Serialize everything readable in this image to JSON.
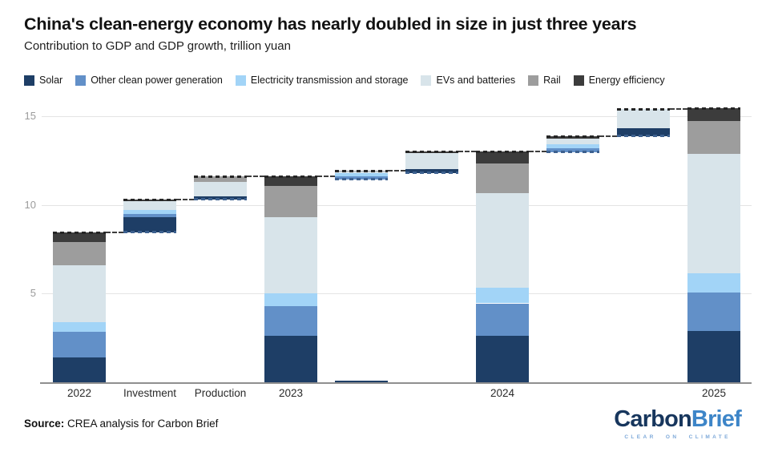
{
  "header": {
    "title": "China's clean-energy economy has nearly doubled in size in just three years",
    "subtitle": "Contribution to GDP and GDP growth, trillion yuan"
  },
  "legend": {
    "items": [
      {
        "label": "Solar"
      },
      {
        "label": "Other clean power generation"
      },
      {
        "label": "Electricity transmission and storage"
      },
      {
        "label": "EVs and batteries"
      },
      {
        "label": "Rail"
      },
      {
        "label": "Energy efficiency"
      }
    ]
  },
  "chart_data": {
    "type": "bar",
    "subtype": "stacked-waterfall",
    "title": "China's clean-energy economy has nearly doubled in size in just three years",
    "subtitle": "Contribution to GDP and GDP growth, trillion yuan",
    "unit": "trillion yuan",
    "ylim": [
      0,
      15.9
    ],
    "yticks": [
      15,
      10,
      5
    ],
    "grid": true,
    "legend_position": "top",
    "series": [
      "Solar",
      "Other clean power generation",
      "Electricity transmission and storage",
      "EVs and batteries",
      "Rail",
      "Energy efficiency"
    ],
    "colors": [
      "#1e3e66",
      "#6290c8",
      "#a2d4f7",
      "#d8e4ea",
      "#9d9d9d",
      "#3c3c3c"
    ],
    "bars": [
      {
        "label": "2022",
        "base": 0,
        "segments": [
          1.4,
          1.45,
          0.55,
          3.2,
          1.3,
          0.55
        ],
        "total": 8.45
      },
      {
        "label": "Investment",
        "base": 8.45,
        "segments": [
          0.85,
          0.2,
          0.2,
          0.5,
          0,
          0.1
        ],
        "total": 10.3
      },
      {
        "label": "Production",
        "base": 10.3,
        "segments": [
          0.2,
          0,
          0,
          0.8,
          0.3,
          0
        ],
        "total": 11.6
      },
      {
        "label": "2023",
        "base": 0,
        "segments": [
          2.6,
          1.7,
          0.7,
          4.3,
          1.75,
          0.55
        ],
        "total": 11.6
      },
      {
        "label": "",
        "base": 11.45,
        "segments": [
          0,
          0.15,
          0.2,
          0.1,
          0.05,
          0
        ],
        "total": 11.95,
        "baseline_stub": 0.1
      },
      {
        "label": "",
        "base": 11.8,
        "segments": [
          0.2,
          0,
          0,
          0.93,
          0,
          0.07
        ],
        "total": 13.0
      },
      {
        "label": "2024",
        "base": 0,
        "segments": [
          2.6,
          1.85,
          0.9,
          5.3,
          1.7,
          0.65
        ],
        "total": 13.0
      },
      {
        "label": "",
        "base": 12.95,
        "segments": [
          0,
          0.25,
          0.2,
          0.33,
          0,
          0.12
        ],
        "total": 13.85
      },
      {
        "label": "",
        "base": 13.85,
        "segments": [
          0.45,
          0,
          0,
          1.12,
          0,
          0
        ],
        "total": 15.42
      },
      {
        "label": "2025",
        "base": 0,
        "segments": [
          2.9,
          2.15,
          1.08,
          6.75,
          1.85,
          0.7
        ],
        "total": 15.43
      }
    ]
  },
  "footer": {
    "source_label": "Source:",
    "source_text": " CREA analysis for Carbon Brief"
  },
  "logo": {
    "part1": "Carbon",
    "part2": "Brief",
    "tagline": "CLEAR ON CLIMATE"
  }
}
